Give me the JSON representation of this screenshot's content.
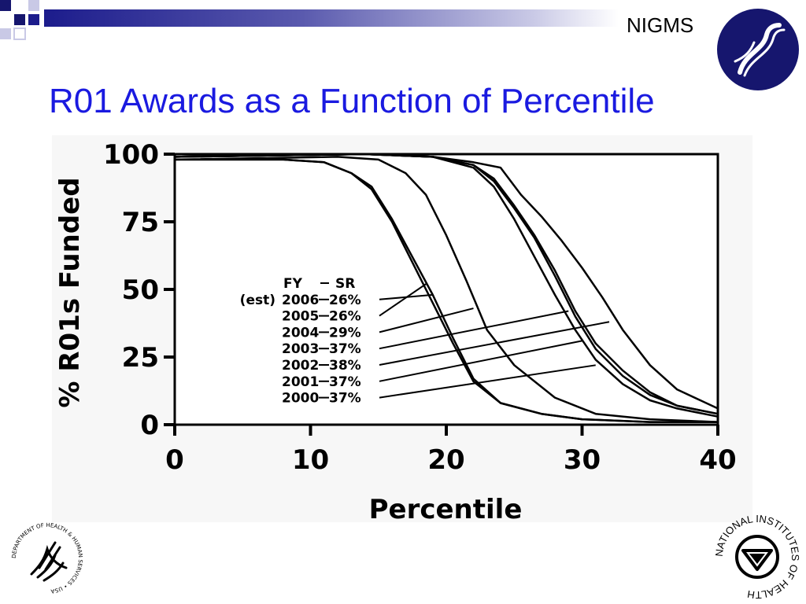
{
  "header": {
    "org_name": "NIGMS",
    "title": "R01 Awards as a Function of Percentile"
  },
  "colors": {
    "title_blue": "#1a1ae0",
    "logo_navy": "#16166e",
    "bar_dark": "#1c1c8c",
    "chart_bg": "#f7f7f7",
    "line": "#000000"
  },
  "icons": {
    "top_left": "corner-squares-decoration",
    "top_right": "nigms-logo",
    "bottom_left": "hhs-seal",
    "bottom_right": "nih-seal"
  },
  "seals": {
    "hhs": "DEPARTMENT OF HEALTH & HUMAN SERVICES • USA",
    "nih": "NATIONAL INSTITUTES OF HEALTH"
  },
  "chart_data": {
    "type": "line",
    "xlabel": "Percentile",
    "ylabel": "% R01s Funded",
    "xlim": [
      0,
      40
    ],
    "ylim": [
      0,
      100
    ],
    "xticks": [
      "0",
      "10",
      "20",
      "30",
      "40"
    ],
    "yticks": [
      "0",
      "25",
      "50",
      "75",
      "100"
    ],
    "grid": false,
    "legend": {
      "header_fy": "FY",
      "header_sr": "SR",
      "est_note": "(est)",
      "placement": "center"
    },
    "series": [
      {
        "name": "2006",
        "sr": "26%",
        "anchor": [
          19.0,
          48
        ],
        "points": [
          [
            0,
            98
          ],
          [
            8,
            98
          ],
          [
            11,
            97
          ],
          [
            13,
            93
          ],
          [
            14.5,
            88
          ],
          [
            16,
            76
          ],
          [
            17.5,
            62
          ],
          [
            19,
            48
          ],
          [
            20.5,
            32
          ],
          [
            22,
            17
          ],
          [
            24,
            8
          ],
          [
            27,
            4
          ],
          [
            30,
            2
          ],
          [
            35,
            1
          ],
          [
            40,
            1
          ]
        ]
      },
      {
        "name": "2005",
        "sr": "26%",
        "anchor": [
          18.5,
          52
        ],
        "points": [
          [
            0,
            98
          ],
          [
            8,
            98
          ],
          [
            11,
            97
          ],
          [
            13,
            93
          ],
          [
            14.5,
            87
          ],
          [
            16,
            75
          ],
          [
            17.5,
            60
          ],
          [
            19,
            45
          ],
          [
            20.5,
            30
          ],
          [
            22,
            16
          ],
          [
            24,
            8
          ],
          [
            27,
            4
          ],
          [
            30,
            2
          ],
          [
            35,
            1
          ],
          [
            40,
            1
          ]
        ]
      },
      {
        "name": "2004",
        "sr": "29%",
        "anchor": [
          22.0,
          43
        ],
        "points": [
          [
            0,
            98
          ],
          [
            12,
            99
          ],
          [
            15,
            98
          ],
          [
            17,
            93
          ],
          [
            18.5,
            85
          ],
          [
            20,
            70
          ],
          [
            21.5,
            53
          ],
          [
            23,
            35
          ],
          [
            25,
            22
          ],
          [
            28,
            10
          ],
          [
            31,
            4
          ],
          [
            35,
            2
          ],
          [
            40,
            1
          ]
        ]
      },
      {
        "name": "2003",
        "sr": "37%",
        "anchor": [
          29.0,
          42
        ],
        "points": [
          [
            0,
            99
          ],
          [
            14,
            100
          ],
          [
            19,
            99
          ],
          [
            22,
            96
          ],
          [
            23.5,
            91
          ],
          [
            25,
            81
          ],
          [
            26.5,
            70
          ],
          [
            28,
            57
          ],
          [
            29.5,
            42
          ],
          [
            31,
            30
          ],
          [
            33,
            20
          ],
          [
            35,
            12
          ],
          [
            37,
            7
          ],
          [
            40,
            4
          ]
        ]
      },
      {
        "name": "2002",
        "sr": "38%",
        "anchor": [
          32.0,
          38
        ],
        "points": [
          [
            0,
            99
          ],
          [
            14,
            100
          ],
          [
            19,
            99
          ],
          [
            22,
            97
          ],
          [
            24,
            95
          ],
          [
            25.5,
            85
          ],
          [
            27,
            77
          ],
          [
            28.5,
            68
          ],
          [
            30,
            58
          ],
          [
            31.5,
            47
          ],
          [
            33,
            35
          ],
          [
            35,
            22
          ],
          [
            37,
            13
          ],
          [
            40,
            6
          ]
        ]
      },
      {
        "name": "2001",
        "sr": "37%",
        "anchor": [
          30.0,
          31
        ],
        "points": [
          [
            0,
            99
          ],
          [
            14,
            100
          ],
          [
            19,
            99
          ],
          [
            22,
            96
          ],
          [
            23.5,
            90
          ],
          [
            25,
            80
          ],
          [
            26.5,
            69
          ],
          [
            28,
            55
          ],
          [
            29.5,
            40
          ],
          [
            31,
            28
          ],
          [
            33,
            18
          ],
          [
            35,
            11
          ],
          [
            37,
            7
          ],
          [
            40,
            4
          ]
        ]
      },
      {
        "name": "2000",
        "sr": "37%",
        "anchor": [
          31.0,
          22
        ],
        "points": [
          [
            0,
            99
          ],
          [
            14,
            100
          ],
          [
            19,
            99
          ],
          [
            22,
            95
          ],
          [
            23.5,
            88
          ],
          [
            25,
            76
          ],
          [
            26.5,
            62
          ],
          [
            28,
            48
          ],
          [
            29.5,
            35
          ],
          [
            31,
            24
          ],
          [
            33,
            15
          ],
          [
            35,
            9
          ],
          [
            37,
            6
          ],
          [
            40,
            3
          ]
        ]
      }
    ]
  }
}
